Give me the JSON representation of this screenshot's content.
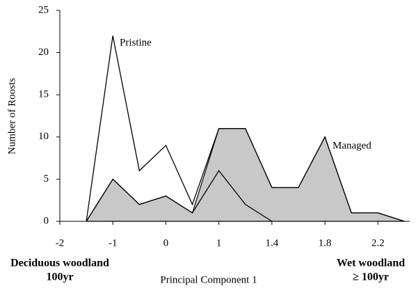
{
  "chart_data": {
    "type": "area-line",
    "xlabel": "Principal Component 1",
    "ylabel": "Number of Roosts",
    "x": [
      -1.5,
      -1,
      -0.5,
      0,
      0.5,
      1,
      1.5,
      2,
      2.5,
      3,
      3.5,
      4,
      4.5
    ],
    "series": [
      {
        "name": "Managed",
        "color": "#c8c8c8",
        "fill": true,
        "values": [
          0,
          5,
          2,
          3,
          1,
          11,
          11,
          4,
          4,
          10,
          1,
          1,
          0
        ]
      },
      {
        "color": "#000000",
        "fill": false,
        "values": [
          0,
          5,
          2,
          3,
          1,
          6,
          2,
          0,
          null,
          null,
          null,
          null,
          null
        ]
      },
      {
        "name": "Pristine",
        "color": "#000000",
        "fill": false,
        "values": [
          0,
          22,
          6,
          9,
          2,
          11,
          11,
          4,
          4,
          10,
          1,
          1,
          0
        ]
      }
    ],
    "xlim": [
      -2,
      4.6
    ],
    "xticks": [
      -2,
      -1,
      0,
      1,
      {
        "value": 2,
        "label": "1.4"
      },
      {
        "value": 3,
        "label": "1.8"
      },
      {
        "value": 4,
        "label": "2.2"
      }
    ],
    "ylim": [
      0,
      25
    ],
    "yticks": [
      0,
      5,
      10,
      15,
      20,
      25
    ],
    "footer_left": [
      "Deciduous woodland",
      "100yr"
    ],
    "footer_right": [
      "Wet woodland",
      "≥ 100yr"
    ]
  }
}
